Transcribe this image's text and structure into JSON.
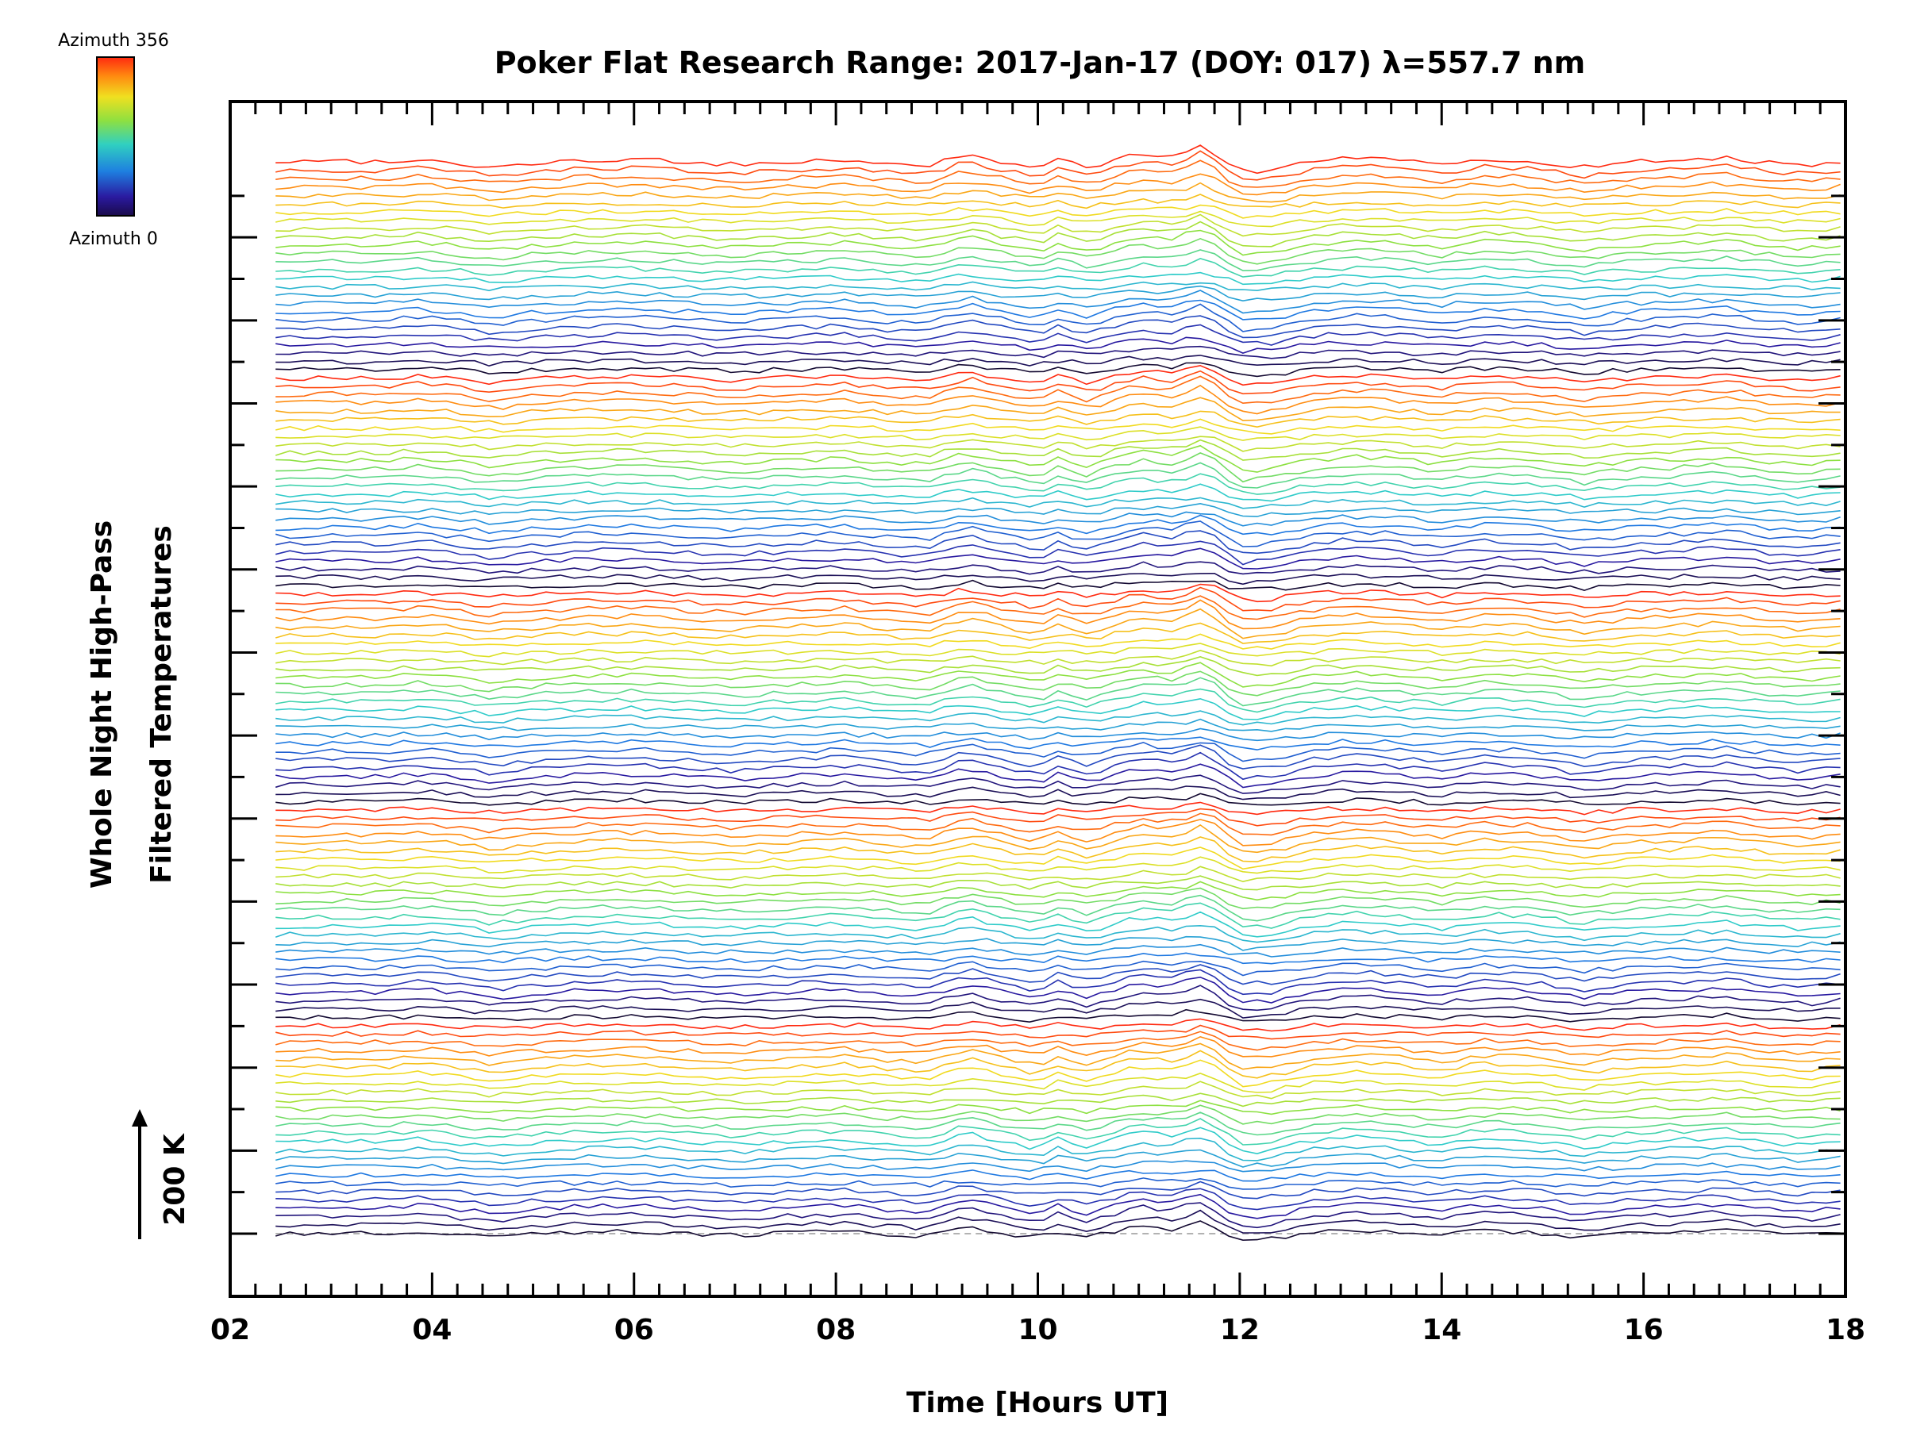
{
  "chart_data": {
    "type": "line",
    "title": "Poker Flat Research Range: 2017-Jan-17 (DOY: 017) λ=557.7 nm",
    "xlabel": "Time [Hours UT]",
    "ylabel_lines": [
      "Whole Night High-Pass",
      "Filtered Temperatures"
    ],
    "xlim": [
      2,
      18
    ],
    "x_ticks": [
      "02",
      "04",
      "06",
      "08",
      "10",
      "12",
      "14",
      "16",
      "18"
    ],
    "x_tick_values": [
      2,
      4,
      6,
      8,
      10,
      12,
      14,
      16,
      18
    ],
    "y_scale_bar": "200 K",
    "colorbar": {
      "top_label": "Azimuth 356",
      "bottom_label": "Azimuth 0",
      "colormap": "rainbow"
    },
    "trace_count": 130,
    "traces_per_color_cycle": 26,
    "time_start": 2.45,
    "time_end": 17.95,
    "profile_shape_hours": [
      2.45,
      3.0,
      3.5,
      3.9,
      4.3,
      4.6,
      5.0,
      5.5,
      6.1,
      6.5,
      7.0,
      7.5,
      8.1,
      8.5,
      8.9,
      9.3,
      9.6,
      10.0,
      10.2,
      10.5,
      10.8,
      11.0,
      11.3,
      11.6,
      11.75,
      12.0,
      12.3,
      12.7,
      13.1,
      13.5,
      14.0,
      14.4,
      14.9,
      15.4,
      15.9,
      16.3,
      16.8,
      17.2,
      17.6,
      17.95
    ],
    "profile_shape_relative": [
      0,
      0.1,
      0.05,
      0.35,
      -0.1,
      -0.5,
      -0.05,
      0.25,
      0.3,
      0.05,
      -0.2,
      0.1,
      0.3,
      -0.1,
      -0.3,
      0.9,
      0.2,
      -0.6,
      0.3,
      -0.5,
      0.4,
      1.0,
      0.6,
      1.5,
      0.8,
      -1.0,
      -0.8,
      0.1,
      0.5,
      0.3,
      -0.2,
      0.4,
      0.2,
      -0.5,
      0.1,
      0.2,
      0.5,
      0.0,
      -0.3,
      0.1
    ],
    "grid": false,
    "baseline_dashed": true
  }
}
